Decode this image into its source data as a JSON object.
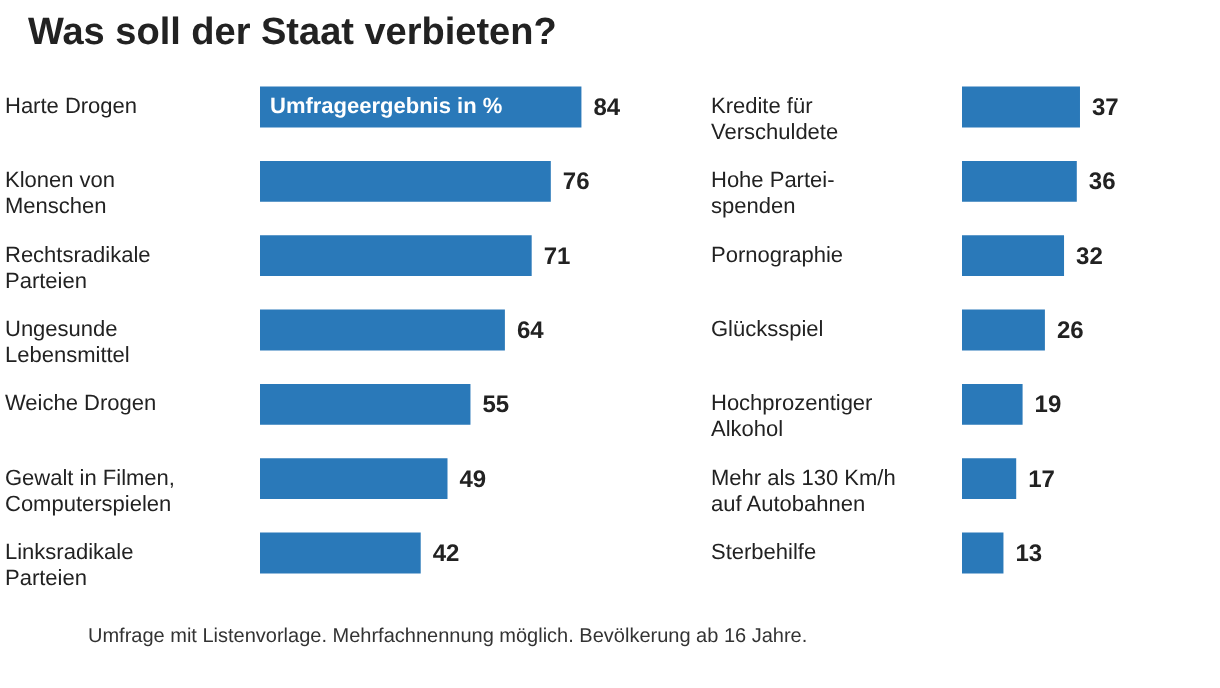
{
  "chart_data": [
    {
      "type": "bar",
      "orientation": "horizontal",
      "title": "Was soll der Staat verbieten?",
      "categories": [
        "Harte Drogen",
        "Klonen von\nMenschen",
        "Rechtsradikale\nParteien",
        "Ungesunde\nLebensmittel",
        "Weiche Drogen",
        "Gewalt in Filmen,\nComputerspielen",
        "Linksradikale\nParteien"
      ],
      "values": [
        84,
        76,
        71,
        64,
        55,
        49,
        42
      ],
      "color": "#2a79b9",
      "data_labels": true,
      "annotations": [
        "Umfrageergebnis in %",
        "Umfrage mit Listenvorlage. Mehrfachnennung möglich. Bevölkerung ab 16 Jahre."
      ]
    },
    {
      "type": "bar",
      "orientation": "horizontal",
      "categories": [
        "Kredite für\nVerschuldete",
        "Hohe Partei-\nspenden",
        "Pornographie",
        "Glücksspiel",
        "Hochprozentiger\nAlkohol",
        "Mehr als 130 Km/h\nauf Autobahnen",
        "Sterbehilfe"
      ],
      "values": [
        37,
        36,
        32,
        26,
        19,
        17,
        13
      ],
      "color": "#2a79b9",
      "data_labels": true
    }
  ]
}
